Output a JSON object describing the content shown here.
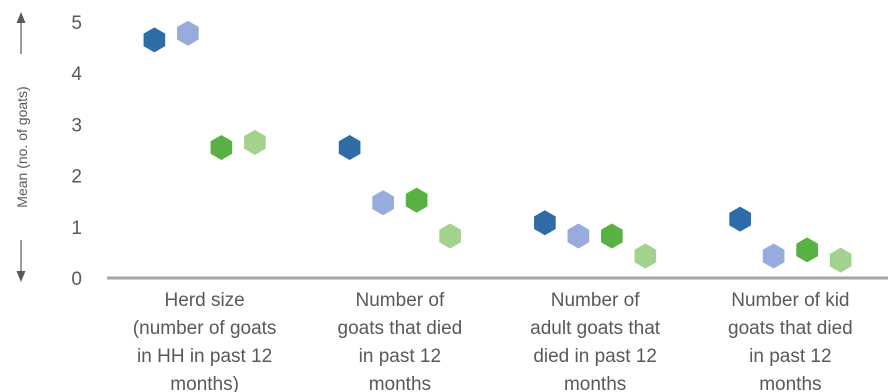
{
  "chart_data": {
    "type": "scatter",
    "ylabel": "Mean (no. of goats)",
    "ylim": [
      0,
      5
    ],
    "yticks": [
      "0",
      "1",
      "2",
      "3",
      "4",
      "5"
    ],
    "grid": false,
    "legend": "none",
    "marker": "hexagon",
    "categories": [
      [
        "Herd size",
        "(number of goats",
        "in HH in past 12",
        "months)"
      ],
      [
        "Number of",
        "goats that died",
        "in past 12",
        "months"
      ],
      [
        "Number of",
        "adult goats that",
        "died in past 12",
        "months"
      ],
      [
        "Number of kid",
        "goats that died",
        "in past 12",
        "months"
      ]
    ],
    "series": [
      {
        "color": "#2e6ca8",
        "values": [
          4.65,
          2.55,
          1.08,
          1.15
        ]
      },
      {
        "color": "#97acdd",
        "values": [
          4.78,
          1.47,
          0.82,
          0.43
        ]
      },
      {
        "color": "#5ab143",
        "values": [
          2.55,
          1.52,
          0.82,
          0.55
        ]
      },
      {
        "color": "#a3d28e",
        "values": [
          2.65,
          0.82,
          0.43,
          0.35
        ]
      }
    ]
  }
}
